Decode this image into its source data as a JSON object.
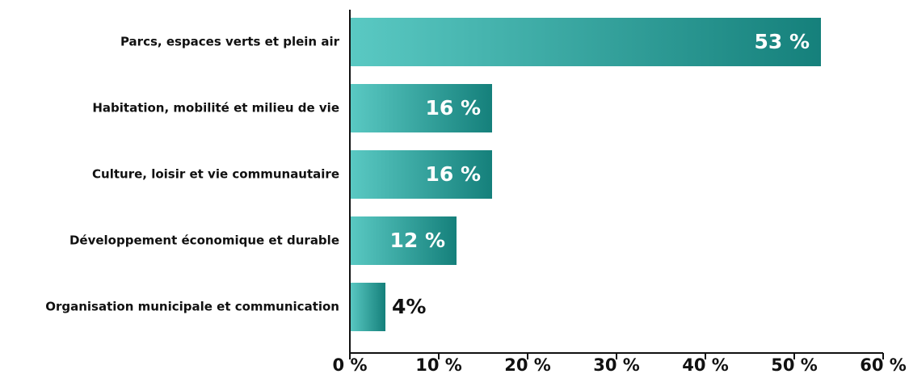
{
  "chart_data": {
    "type": "bar",
    "orientation": "horizontal",
    "categories": [
      "Parcs, espaces verts et plein air",
      "Habitation, mobilité et milieu de vie",
      "Culture, loisir et vie communautaire",
      "Développement économique et durable",
      "Organisation municipale et communication"
    ],
    "values": [
      53,
      16,
      16,
      12,
      4
    ],
    "value_labels": [
      "53 %",
      "16 %",
      "16 %",
      "12 %",
      "4%"
    ],
    "gradient": [
      "#5ac9c3",
      "#15807b"
    ],
    "xlim": [
      0,
      60
    ],
    "xticks": [
      {
        "value": 0,
        "label": "0 %"
      },
      {
        "value": 10,
        "label": "10 %"
      },
      {
        "value": 20,
        "label": "20 %"
      },
      {
        "value": 30,
        "label": "30 %"
      },
      {
        "value": 40,
        "label": "40 %"
      },
      {
        "value": 50,
        "label": "50 %"
      },
      {
        "value": 60,
        "label": "60 %"
      }
    ]
  }
}
